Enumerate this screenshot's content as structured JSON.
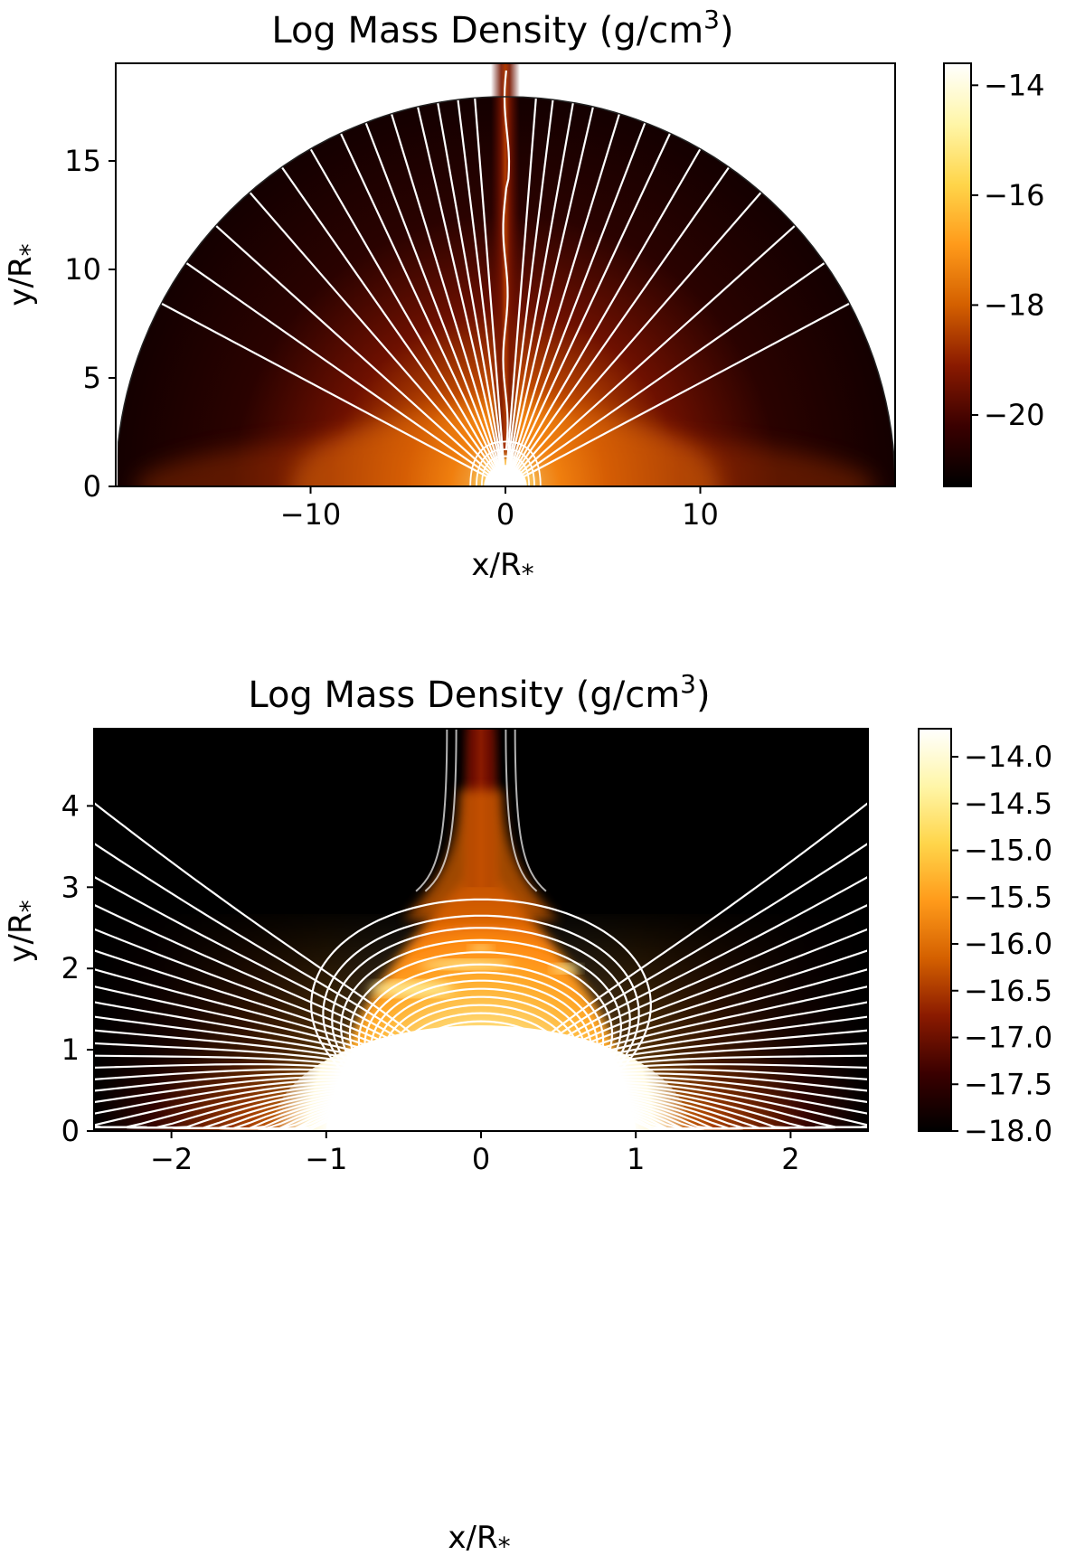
{
  "chart_data": [
    {
      "type": "heatmap",
      "title_main": "Log Mass Density (g/cm",
      "title_sup": "3",
      "title_close": ")",
      "xlabel": "x/R",
      "ylabel": "y/R",
      "label_sub": "*",
      "xlim": [
        -20,
        20
      ],
      "ylim": [
        0,
        19.5
      ],
      "xticks": [
        -10,
        0,
        10
      ],
      "xtick_labels": [
        "−10",
        "0",
        "10"
      ],
      "yticks": [
        0,
        5,
        10,
        15
      ],
      "ytick_labels": [
        "0",
        "5",
        "10",
        "15"
      ],
      "domain_radius": 20,
      "colorbar": {
        "range": [
          -21.3,
          -13.6
        ],
        "ticks": [
          -14,
          -16,
          -18,
          -20
        ],
        "tick_labels": [
          "−14",
          "−16",
          "−18",
          "−20"
        ]
      },
      "field_lines": "radial",
      "field_line_angles_deg": [
        28,
        35,
        42,
        49,
        55,
        60,
        65,
        69,
        73,
        77,
        80,
        83,
        85.5,
        94.5,
        97,
        100,
        103,
        107,
        111,
        115,
        120,
        125,
        131,
        138,
        145,
        152
      ]
    },
    {
      "type": "heatmap",
      "title_main": "Log Mass Density (g/cm",
      "title_sup": "3",
      "title_close": ")",
      "xlabel": "x/R",
      "ylabel": "y/R",
      "label_sub": "*",
      "xlim": [
        -2.5,
        2.5
      ],
      "ylim": [
        0,
        4.95
      ],
      "xticks": [
        -2,
        -1,
        0,
        1,
        2
      ],
      "xtick_labels": [
        "−2",
        "−1",
        "0",
        "1",
        "2"
      ],
      "yticks": [
        0,
        1,
        2,
        3,
        4
      ],
      "ytick_labels": [
        "0",
        "1",
        "2",
        "3",
        "4"
      ],
      "star_radius": 1,
      "colorbar": {
        "range": [
          -18.0,
          -13.7
        ],
        "ticks": [
          -14.0,
          -14.5,
          -15.0,
          -15.5,
          -16.0,
          -16.5,
          -17.0,
          -17.5,
          -18.0
        ],
        "tick_labels": [
          "−14.0",
          "−14.5",
          "−15.0",
          "−15.5",
          "−16.0",
          "−16.5",
          "−17.0",
          "−17.5",
          "−18.0"
        ]
      },
      "field_lines": "dipole_plus_open",
      "closed_loop_apex_radii": [
        1.15,
        1.25,
        1.35,
        1.45,
        1.55,
        1.65,
        1.75,
        1.85,
        1.95,
        2.05,
        2.2,
        2.35,
        2.5,
        2.65,
        2.85
      ],
      "open_line_footpoint_colatitudes_deg": [
        17,
        19,
        21,
        23,
        25,
        27,
        29,
        31,
        33,
        35,
        37,
        39,
        41,
        43,
        45,
        47,
        49,
        51,
        53,
        55,
        57,
        59,
        61,
        63,
        65,
        67,
        69,
        71,
        73,
        75,
        77,
        79,
        81,
        83
      ]
    }
  ],
  "colormap": [
    "#000000",
    "#3a0000",
    "#8a1a00",
    "#d46000",
    "#ff9a1a",
    "#ffd54a",
    "#fff6a8",
    "#ffffff"
  ]
}
